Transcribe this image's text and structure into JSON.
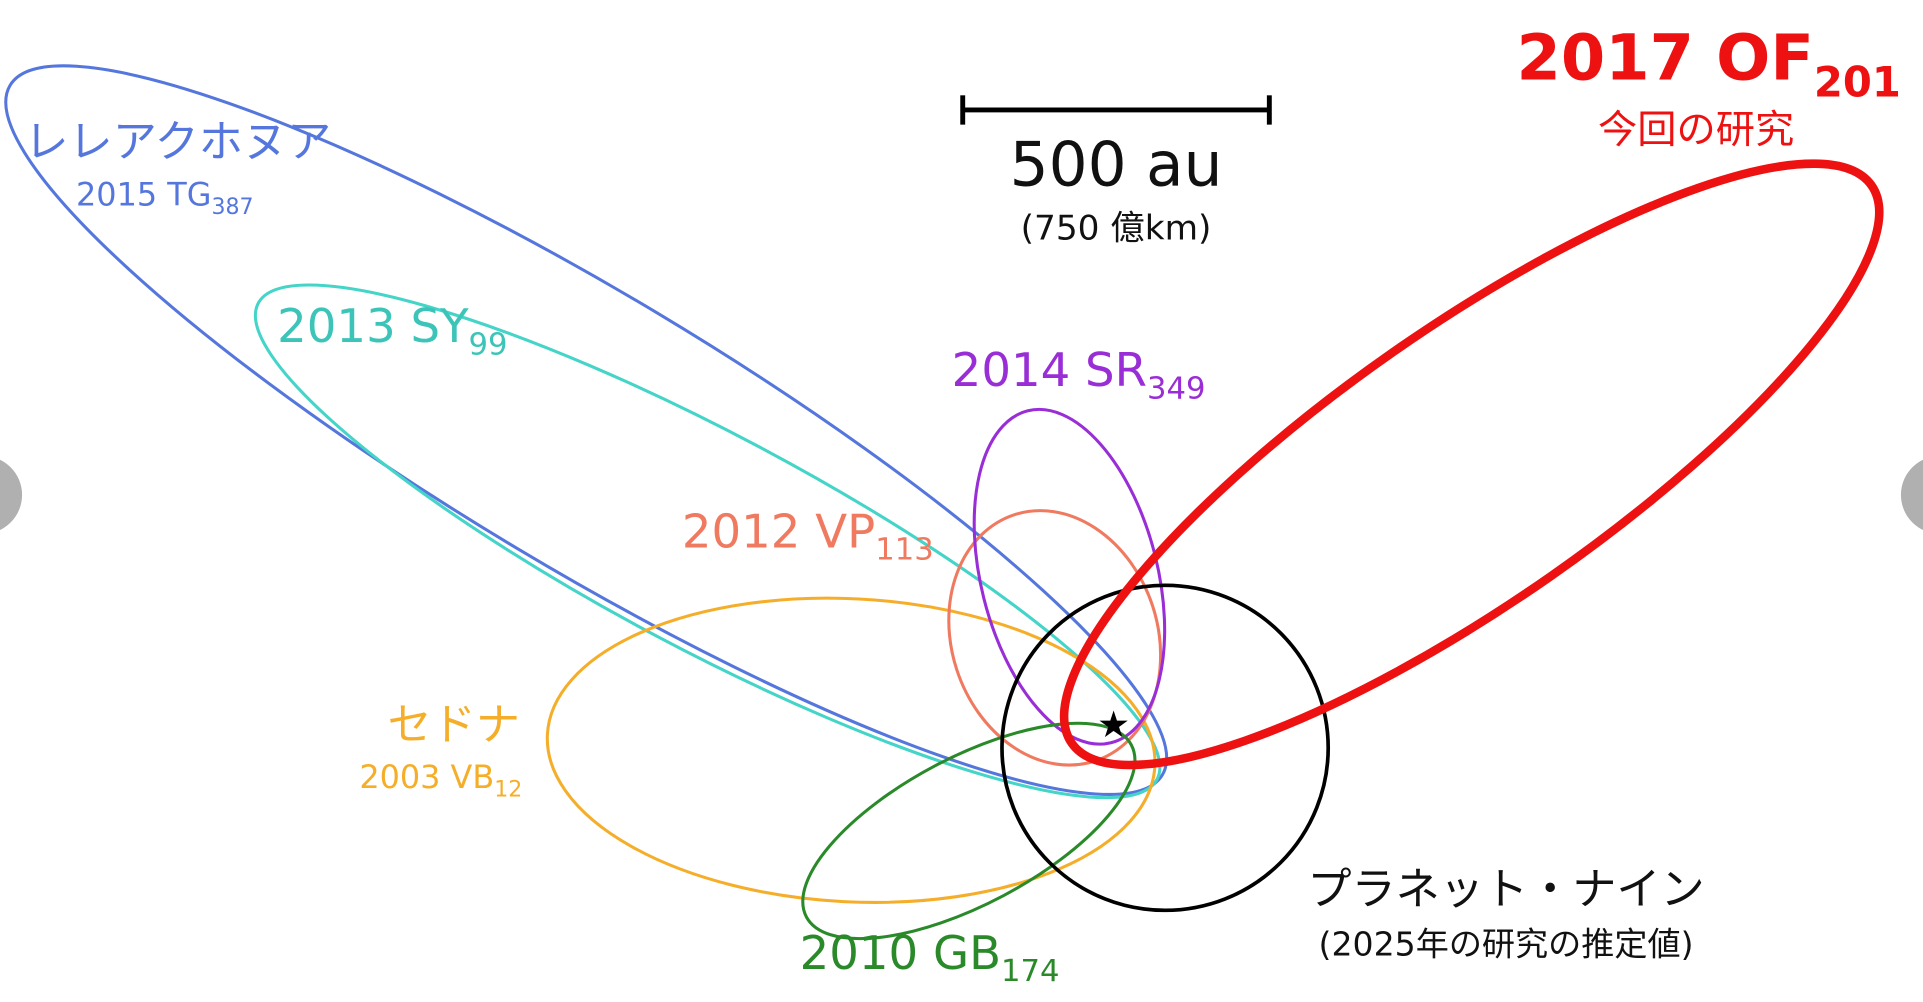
{
  "scale_bar": {
    "label": "500 au",
    "note": "(750 億km)"
  },
  "objects": [
    {
      "designation": "2017 OF",
      "subscript": "201",
      "note": "今回の研究"
    },
    {
      "name": "レレアクホヌア",
      "designation": "2015 TG",
      "subscript": "387"
    },
    {
      "designation": "2013 SY",
      "subscript": "99"
    },
    {
      "designation": "2014 SR",
      "subscript": "349"
    },
    {
      "designation": "2012 VP",
      "subscript": "113"
    },
    {
      "name": "セドナ",
      "designation": "2003 VB",
      "subscript": "12"
    },
    {
      "designation": "2010 GB",
      "subscript": "174"
    },
    {
      "name": "プラネット・ナイン",
      "note": "(2025年の研究の推定値)"
    }
  ]
}
